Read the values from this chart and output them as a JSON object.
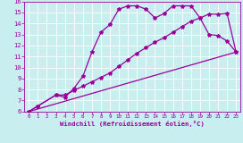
{
  "xlabel": "Windchill (Refroidissement éolien,°C)",
  "bg_color": "#c8eef0",
  "line_color": "#990099",
  "grid_color": "#ffffff",
  "xlim": [
    -0.5,
    23.5
  ],
  "ylim": [
    6,
    16
  ],
  "xticks": [
    0,
    1,
    2,
    3,
    4,
    5,
    6,
    7,
    8,
    9,
    10,
    11,
    12,
    13,
    14,
    15,
    16,
    17,
    18,
    19,
    20,
    21,
    22,
    23
  ],
  "yticks": [
    6,
    7,
    8,
    9,
    10,
    11,
    12,
    13,
    14,
    15,
    16
  ],
  "curve1_x": [
    0,
    1,
    3,
    4,
    5,
    6,
    7,
    8,
    9,
    10,
    11,
    12,
    13,
    14,
    15,
    16,
    17,
    18,
    19,
    20,
    21,
    22,
    23
  ],
  "curve1_y": [
    6.0,
    6.5,
    7.5,
    7.3,
    8.1,
    9.2,
    11.4,
    13.2,
    13.9,
    15.3,
    15.6,
    15.6,
    15.3,
    14.5,
    14.9,
    15.6,
    15.6,
    15.6,
    14.5,
    14.85,
    14.85,
    14.9,
    11.4
  ],
  "curve1_markers": true,
  "curve2_x": [
    0,
    1,
    3,
    4,
    5,
    6,
    7,
    8,
    9,
    10,
    11,
    12,
    13,
    14,
    15,
    16,
    17,
    18,
    19,
    20,
    21,
    22,
    23
  ],
  "curve2_y": [
    6.0,
    6.5,
    7.5,
    7.5,
    7.9,
    8.3,
    8.7,
    9.1,
    9.5,
    10.1,
    10.7,
    11.3,
    11.8,
    12.3,
    12.7,
    13.2,
    13.7,
    14.2,
    14.5,
    13.0,
    12.9,
    12.4,
    11.4
  ],
  "curve2_markers": true,
  "curve3_x": [
    0,
    23
  ],
  "curve3_y": [
    6.0,
    11.4
  ],
  "curve3_markers": false,
  "marker": "*",
  "markersize": 3,
  "linewidth": 0.9
}
